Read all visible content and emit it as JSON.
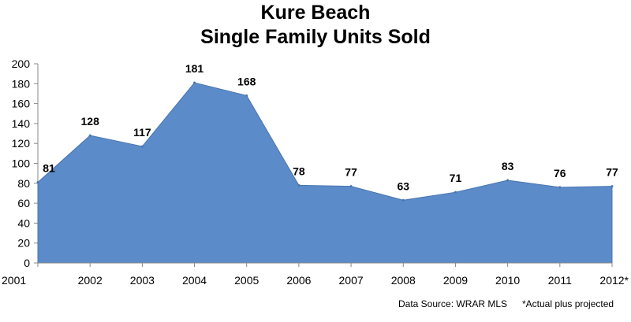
{
  "chart_data": {
    "type": "area",
    "title_lines": [
      "Kure Beach",
      "Single Family Units Sold"
    ],
    "categories": [
      "2001",
      "2002",
      "2003",
      "2004",
      "2005",
      "2006",
      "2007",
      "2008",
      "2009",
      "2010",
      "2011",
      "2012*"
    ],
    "values": [
      81,
      128,
      117,
      181,
      168,
      78,
      77,
      63,
      71,
      83,
      76,
      77
    ],
    "data_labels": [
      "81",
      "128",
      "117",
      "181",
      "168",
      "78",
      "77",
      "63",
      "71",
      "83",
      "76",
      "77"
    ],
    "ylim": [
      0,
      200
    ],
    "y_ticks": [
      "0",
      "20",
      "40",
      "60",
      "80",
      "100",
      "120",
      "140",
      "160",
      "180",
      "200"
    ],
    "grid": false,
    "legend": "none",
    "colors": {
      "area_fill": "#5B8BC9",
      "area_stroke": "#4A76B0",
      "axis": "#888888"
    }
  },
  "footnotes": {
    "source": "Data Source: WRAR MLS",
    "note": "*Actual plus projected"
  }
}
